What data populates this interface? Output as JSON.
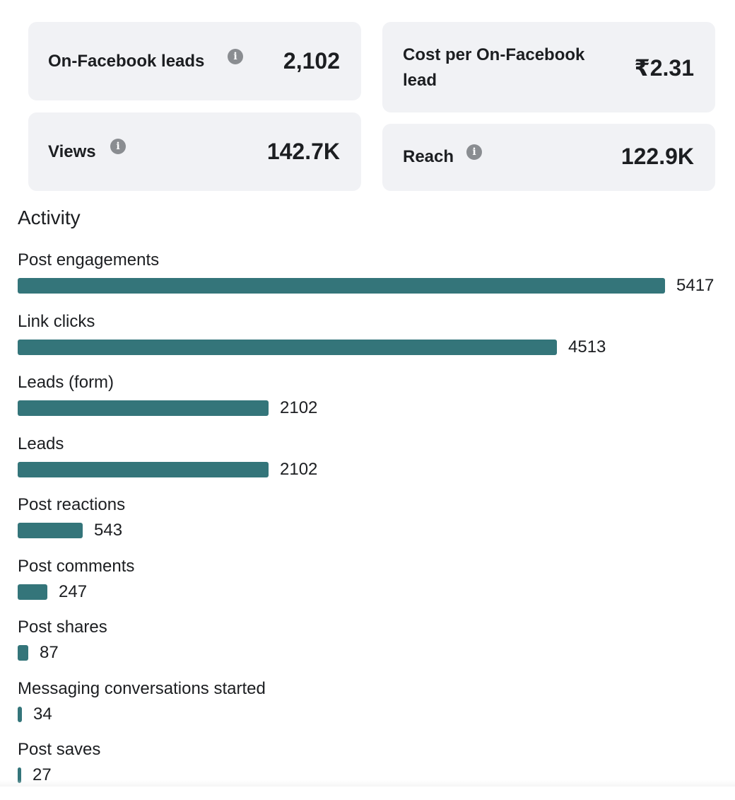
{
  "metrics": [
    {
      "label": "On-Facebook leads",
      "value": "2,102",
      "has_info": true
    },
    {
      "label": "Cost per On-Facebook lead",
      "value": "₹2.31",
      "has_info": false
    },
    {
      "label": "Views",
      "value": "142.7K",
      "has_info": true
    },
    {
      "label": "Reach",
      "value": "122.9K",
      "has_info": true
    }
  ],
  "info_icon_glyph": "i",
  "activity": {
    "title": "Activity",
    "bar_color": "#34757a",
    "items": [
      {
        "label": "Post engagements",
        "value": 5417
      },
      {
        "label": "Link clicks",
        "value": 4513
      },
      {
        "label": "Leads (form)",
        "value": 2102
      },
      {
        "label": "Leads",
        "value": 2102
      },
      {
        "label": "Post reactions",
        "value": 543
      },
      {
        "label": "Post comments",
        "value": 247
      },
      {
        "label": "Post shares",
        "value": 87
      },
      {
        "label": "Messaging conversations started",
        "value": 34
      },
      {
        "label": "Post saves",
        "value": 27
      }
    ]
  }
}
